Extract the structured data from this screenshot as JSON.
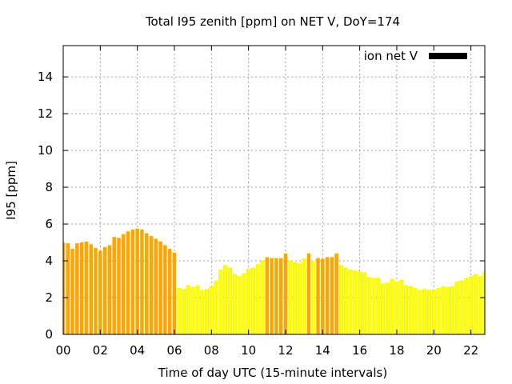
{
  "chart_data": {
    "type": "bar",
    "title": "Total I95 zenith [ppm] on NET V, DoY=174",
    "xlabel": "Time of day UTC (15-minute intervals)",
    "ylabel": "I95 [ppm]",
    "xlim": [
      0,
      22.75
    ],
    "ylim": [
      0,
      15.7
    ],
    "grid": true,
    "legend": {
      "position": "top-right",
      "label": "ion net V",
      "color": "#000000"
    },
    "xticks": [
      {
        "value": 0,
        "label": "00"
      },
      {
        "value": 2,
        "label": "02"
      },
      {
        "value": 4,
        "label": "04"
      },
      {
        "value": 6,
        "label": "06"
      },
      {
        "value": 8,
        "label": "08"
      },
      {
        "value": 10,
        "label": "10"
      },
      {
        "value": 12,
        "label": "12"
      },
      {
        "value": 14,
        "label": "14"
      },
      {
        "value": 16,
        "label": "16"
      },
      {
        "value": 18,
        "label": "18"
      },
      {
        "value": 20,
        "label": "20"
      },
      {
        "value": 22,
        "label": "22"
      }
    ],
    "yticks": [
      {
        "value": 0,
        "label": "0"
      },
      {
        "value": 2,
        "label": "2"
      },
      {
        "value": 4,
        "label": "4"
      },
      {
        "value": 6,
        "label": "6"
      },
      {
        "value": 8,
        "label": "8"
      },
      {
        "value": 10,
        "label": "10"
      },
      {
        "value": 12,
        "label": "12"
      },
      {
        "value": 14,
        "label": "14"
      }
    ],
    "bar_start_hour": 0,
    "bar_interval_hours": 0.25,
    "colors": {
      "orange": "#ffa500",
      "yellow": "#ffff00",
      "yellow_edge": "#e8e800",
      "grid": "#a0a0a0"
    },
    "values": [
      5.0,
      4.95,
      4.65,
      4.95,
      5.0,
      5.05,
      4.9,
      4.7,
      4.55,
      4.75,
      4.85,
      5.3,
      5.25,
      5.45,
      5.6,
      5.7,
      5.75,
      5.7,
      5.5,
      5.35,
      5.2,
      5.05,
      4.85,
      4.65,
      4.45,
      2.5,
      2.45,
      2.65,
      2.55,
      2.65,
      2.4,
      2.45,
      2.6,
      2.9,
      3.5,
      3.75,
      3.6,
      3.25,
      3.15,
      3.3,
      3.55,
      3.6,
      3.8,
      4.0,
      4.2,
      4.15,
      4.15,
      4.15,
      4.4,
      4.0,
      3.9,
      3.85,
      4.1,
      4.4,
      3.95,
      4.15,
      4.1,
      4.2,
      4.2,
      4.4,
      3.75,
      3.6,
      3.5,
      3.45,
      3.4,
      3.35,
      3.1,
      3.05,
      3.05,
      2.75,
      2.8,
      3.0,
      2.85,
      2.95,
      2.65,
      2.6,
      2.5,
      2.4,
      2.45,
      2.4,
      2.4,
      2.5,
      2.6,
      2.55,
      2.6,
      2.85,
      2.9,
      3.05,
      3.15,
      3.25,
      3.15,
      3.4
    ],
    "orange_ranges": [
      [
        0,
        24
      ],
      [
        44,
        47
      ],
      [
        48,
        48
      ],
      [
        53,
        53
      ],
      [
        55,
        59
      ]
    ]
  }
}
